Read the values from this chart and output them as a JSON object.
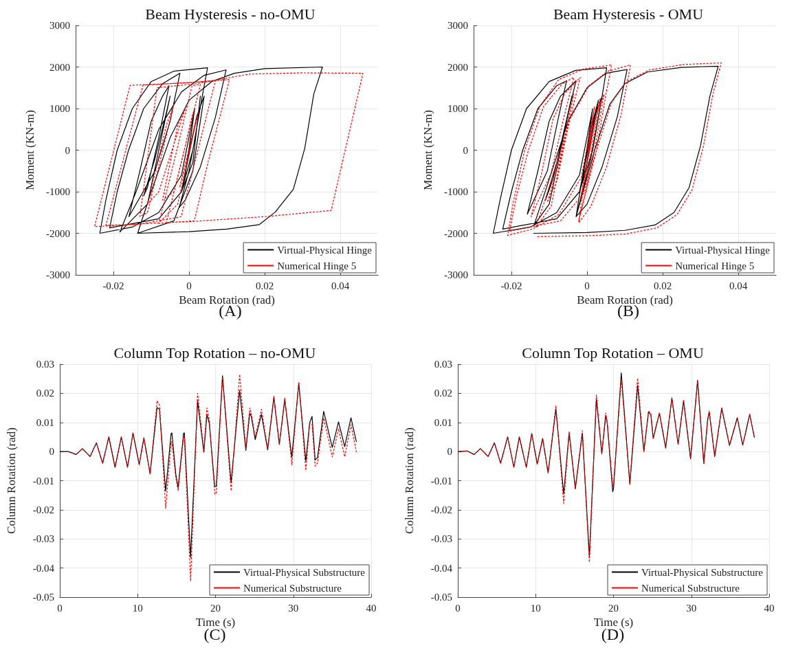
{
  "chart_data": [
    {
      "type": "line",
      "title": "Beam Hysteresis - no-OMU",
      "xlabel": "Beam Rotation (rad)",
      "ylabel": "Moment (KN-m)",
      "annotations": [
        "(A)"
      ],
      "xlim": [
        -0.03,
        0.05
      ],
      "xticks": [
        -0.02,
        0,
        0.02,
        0.04
      ],
      "ylim": [
        -3000,
        3000
      ],
      "yticks": [
        -3000,
        -2000,
        -1000,
        0,
        1000,
        2000,
        3000
      ],
      "grid": true,
      "legend": "bottom right",
      "series": [
        {
          "name": "Virtual-Physical Hinge",
          "color": "#000000",
          "line_style": "solid",
          "x": [
            0,
            0.0012,
            -0.001,
            0.0015,
            -0.002,
            -0.008,
            -0.015,
            -0.0236,
            -0.022,
            -0.019,
            -0.015,
            -0.01,
            -0.004,
            0.0049,
            0.0035,
            0.001,
            -0.002,
            -0.008,
            -0.021,
            -0.019,
            -0.016,
            -0.012,
            -0.007,
            -0.0024,
            -0.005,
            -0.009,
            -0.0159,
            -0.013,
            -0.01,
            -0.007,
            -0.0053,
            -0.008,
            -0.011,
            -0.012,
            -0.009,
            -0.006,
            -0.005,
            -0.008,
            -0.011,
            -0.0183,
            -0.014,
            -0.008,
            -0.002,
            0.004,
            0.0098,
            0.007,
            0.003,
            -0.001,
            -0.0026,
            0,
            0.002,
            0.003,
            0.001,
            -0.002,
            0.002,
            0.004,
            0.001,
            -0.004,
            -0.0136,
            -0.01,
            -0.005,
            0,
            0.006,
            0.012,
            0.02,
            0.0353,
            0.033,
            0.0306,
            0.0276,
            0.0228,
            0.0186,
            0.01,
            0,
            -0.0136
          ],
          "values": [
            0,
            800,
            -600,
            1000,
            -600,
            -1500,
            -1850,
            -2000,
            -1200,
            0,
            1000,
            1650,
            1900,
            1980,
            1300,
            0,
            -1000,
            -1650,
            -1870,
            -1000,
            0,
            1000,
            1600,
            1850,
            700,
            -500,
            -1600,
            -500,
            700,
            1300,
            1550,
            300,
            -900,
            -1100,
            -200,
            900,
            1300,
            0,
            -1300,
            -1970,
            -1000,
            500,
            1400,
            1800,
            1930,
            800,
            -400,
            -1200,
            -1380,
            -500,
            500,
            1300,
            -300,
            -1000,
            800,
            1300,
            -500,
            -1700,
            -2000,
            -1000,
            300,
            1200,
            1650,
            1850,
            1960,
            2000,
            1350,
            40,
            -940,
            -1490,
            -1790,
            -1900,
            -1960,
            -2000
          ]
        },
        {
          "name": "Numerical Hinge 5",
          "color": "#ff0000",
          "line_style": "dashed",
          "x": [
            0,
            0.0025,
            -0.0025,
            0.0018,
            -0.003,
            -0.008,
            -0.025,
            -0.0156,
            0,
            0.007,
            -0.0021,
            -0.013,
            -0.022,
            -0.0122,
            0.002,
            0.0107,
            0.005,
            0.0014,
            -0.008,
            -0.0035,
            0.0008,
            0.003,
            -0.004,
            -0.007,
            -0.003,
            -0.001,
            -0.008,
            -0.011,
            -0.006,
            -0.004,
            -0.011,
            -0.013,
            -0.0085,
            0.002,
            0.016,
            0.03,
            0.046,
            0.0376,
            0.02,
            0,
            -0.006,
            -0.0015,
            0.001
          ],
          "values": [
            0,
            900,
            -900,
            700,
            -1300,
            -1750,
            -1840,
            1560,
            1620,
            1680,
            -1600,
            -1780,
            -1810,
            1560,
            1640,
            1700,
            -300,
            -1700,
            -1760,
            -100,
            1550,
            1580,
            -1000,
            -1200,
            600,
            1000,
            -1000,
            -1300,
            600,
            1100,
            -1500,
            -1600,
            1500,
            1600,
            1830,
            1860,
            1850,
            -1450,
            -1600,
            -1720,
            -1740,
            -100,
            900
          ]
        }
      ]
    },
    {
      "type": "line",
      "title": "Beam Hysteresis - OMU",
      "xlabel": "Beam Rotation (rad)",
      "ylabel": "Moment (KN-m)",
      "annotations": [
        "(B)"
      ],
      "xlim": [
        -0.03,
        0.05
      ],
      "xticks": [
        -0.02,
        0,
        0.02,
        0.04
      ],
      "ylim": [
        -3000,
        3000
      ],
      "yticks": [
        -3000,
        -2000,
        -1000,
        0,
        1000,
        2000,
        3000
      ],
      "grid": true,
      "legend": "bottom right",
      "series": [
        {
          "name": "Virtual-Physical Hinge",
          "color": "#000000",
          "line_style": "solid",
          "x": [
            0,
            0.0012,
            -0.001,
            0.0015,
            -0.002,
            -0.008,
            -0.015,
            -0.0248,
            -0.023,
            -0.02,
            -0.016,
            -0.01,
            -0.003,
            0.0052,
            0.004,
            0.0015,
            -0.002,
            -0.008,
            -0.0223,
            -0.02,
            -0.017,
            -0.013,
            -0.008,
            -0.0054,
            -0.008,
            -0.0105,
            -0.0158,
            -0.013,
            -0.01,
            -0.007,
            -0.0029,
            -0.006,
            -0.009,
            -0.011,
            -0.008,
            -0.005,
            -0.004,
            -0.007,
            -0.01,
            -0.014,
            -0.01,
            -0.005,
            0,
            0.005,
            0.0106,
            0.008,
            0.004,
            0,
            -0.0029,
            -0.001,
            0.001,
            0.003,
            0,
            -0.002,
            0.002,
            0.004,
            0.001,
            -0.0029,
            0.002,
            0.006,
            0.01,
            0.016,
            0.025,
            0.0347,
            0.0325,
            0.03,
            0.027,
            0.023,
            0.018,
            0.01,
            0,
            -0.0142
          ],
          "values": [
            0,
            800,
            -600,
            1000,
            -600,
            -1500,
            -1850,
            -2000,
            -1200,
            0,
            1000,
            1650,
            1920,
            1980,
            1300,
            0,
            -1000,
            -1650,
            -1900,
            -1000,
            0,
            1000,
            1550,
            1670,
            600,
            -500,
            -1540,
            -500,
            700,
            1300,
            1670,
            500,
            -700,
            -1200,
            -300,
            900,
            1300,
            0,
            -1300,
            -1800,
            -700,
            700,
            1500,
            1850,
            1940,
            800,
            -400,
            -1300,
            -1600,
            -500,
            500,
            1200,
            -300,
            -1000,
            800,
            1300,
            -200,
            -1600,
            0,
            1100,
            1600,
            1880,
            1990,
            2020,
            1300,
            100,
            -900,
            -1500,
            -1800,
            -1930,
            -1980,
            -2000
          ]
        },
        {
          "name": "Numerical Hinge 5",
          "color": "#ff0000",
          "line_style": "dashed",
          "x": [
            0,
            0.0016,
            -0.0006,
            0.002,
            -0.0015,
            -0.0075,
            -0.0145,
            -0.021,
            -0.0195,
            -0.0165,
            -0.0125,
            -0.0075,
            -0.001,
            0.0065,
            0.005,
            0.0025,
            -0.001,
            -0.007,
            -0.0205,
            -0.0185,
            -0.0155,
            -0.0115,
            -0.0065,
            -0.0035,
            -0.0065,
            -0.0095,
            -0.0148,
            -0.012,
            -0.009,
            -0.006,
            -0.0018,
            -0.005,
            -0.008,
            -0.0105,
            -0.0075,
            -0.0045,
            -0.0035,
            -0.0065,
            -0.0095,
            -0.0135,
            -0.0095,
            -0.0045,
            0.0005,
            0.0055,
            0.0115,
            0.009,
            0.005,
            0.001,
            -0.0022,
            -0.0005,
            0.0015,
            0.0035,
            0.0005,
            -0.0015,
            0.0025,
            0.0045,
            0.0015,
            -0.0022,
            0.0025,
            0.0065,
            0.0105,
            0.0165,
            0.0255,
            0.0355,
            0.0333,
            0.0308,
            0.0278,
            0.0238,
            0.0185,
            0.01,
            0,
            -0.0135
          ],
          "values": [
            0,
            850,
            -650,
            1050,
            -650,
            -1550,
            -1900,
            -2050,
            -1250,
            0,
            1050,
            1700,
            1950,
            2050,
            1350,
            0,
            -1050,
            -1700,
            -1950,
            -1050,
            0,
            1050,
            1600,
            1750,
            650,
            -550,
            -1600,
            -550,
            750,
            1350,
            1750,
            550,
            -750,
            -1250,
            -350,
            950,
            1350,
            0,
            -1350,
            -1850,
            -750,
            750,
            1550,
            1900,
            2050,
            850,
            -450,
            -1350,
            -1750,
            -550,
            550,
            1250,
            -350,
            -1050,
            850,
            1350,
            -250,
            -1700,
            0,
            1150,
            1650,
            1930,
            2060,
            2100,
            1350,
            100,
            -950,
            -1550,
            -1870,
            -2020,
            -2060,
            -2080
          ]
        }
      ]
    },
    {
      "type": "line",
      "title": "Column Top Rotation – no-OMU",
      "xlabel": "Time (s)",
      "ylabel": "Column Rotation (rad)",
      "annotations": [
        "(C)"
      ],
      "xlim": [
        0,
        40
      ],
      "xticks": [
        0,
        10,
        20,
        30,
        40
      ],
      "ylim": [
        -0.05,
        0.03
      ],
      "yticks": [
        -0.05,
        -0.04,
        -0.03,
        -0.02,
        -0.01,
        0,
        0.01,
        0.02,
        0.03
      ],
      "grid": true,
      "legend": "bottom right",
      "x": [
        0,
        1.1,
        2.1,
        2.9,
        3.9,
        4.7,
        5.5,
        6.3,
        7.1,
        7.9,
        8.7,
        9.4,
        10.2,
        10.8,
        11.6,
        12.5,
        12.8,
        13.6,
        14.3,
        14.4,
        14.9,
        15.2,
        15.9,
        16,
        16.8,
        17.7,
        18.5,
        18.9,
        19.2,
        19.9,
        20.1,
        20.9,
        22,
        23.1,
        23.9,
        24.4,
        24.6,
        25.1,
        25.9,
        26.7,
        27.5,
        28.2,
        28.9,
        29.8,
        30.7,
        31.6,
        32.1,
        32.4,
        32.8,
        33.1,
        33.9,
        35,
        35.8,
        36.6,
        37.4,
        38.1
      ],
      "series": [
        {
          "name": "Virtual-Physical Substructure",
          "color": "#000000",
          "line_style": "solid",
          "values": [
            0,
            0,
            -0.001,
            0.001,
            -0.0017,
            0.003,
            -0.004,
            0.005,
            -0.0054,
            0.005,
            -0.0054,
            0.0064,
            -0.0045,
            0.0047,
            -0.0076,
            0.0151,
            0.0146,
            -0.0136,
            0.0062,
            0.0064,
            -0.0078,
            -0.0124,
            0.0062,
            0.0064,
            -0.0364,
            0.0174,
            -0.0002,
            0.0128,
            0.0097,
            -0.012,
            -0.012,
            0.026,
            -0.0107,
            0.021,
            0.0004,
            0.0132,
            0.0121,
            0.0041,
            0.0128,
            0.0006,
            0.0186,
            0.0025,
            0.0178,
            -0.0019,
            0.0234,
            -0.0033,
            0.0099,
            0.0121,
            -0.0029,
            -0.0021,
            0.0138,
            0.0014,
            0.0102,
            0.0017,
            0.0116,
            0.0033
          ]
        },
        {
          "name": "Numerical Substructure",
          "color": "#ff0000",
          "line_style": "dashed",
          "values": [
            null,
            0,
            -0.001,
            0.001,
            -0.0017,
            0.003,
            -0.004,
            0.005,
            -0.0054,
            0.005,
            -0.0054,
            0.0064,
            -0.0045,
            0.0047,
            -0.0076,
            0.0175,
            0.016,
            -0.0195,
            0.0035,
            0.003,
            -0.009,
            -0.0135,
            0.005,
            0.005,
            -0.0445,
            0.02,
            0.0005,
            0.015,
            0.011,
            -0.0145,
            -0.0145,
            0.026,
            -0.0135,
            0.0265,
            0.001,
            0.015,
            0.013,
            0.005,
            0.0145,
            0.001,
            0.019,
            0.0025,
            0.0185,
            -0.0045,
            0.024,
            -0.0065,
            0.0095,
            0.0095,
            -0.005,
            -0.004,
            0.0115,
            -0.0018,
            0.0078,
            -0.0018,
            0.0092,
            -0.0002
          ]
        }
      ]
    },
    {
      "type": "line",
      "title": "Column Top Rotation – OMU",
      "xlabel": "Time (s)",
      "ylabel": "Column Rotation (rad)",
      "annotations": [
        "(D)"
      ],
      "xlim": [
        0,
        40
      ],
      "xticks": [
        0,
        10,
        20,
        30,
        40
      ],
      "ylim": [
        -0.05,
        0.03
      ],
      "yticks": [
        -0.05,
        -0.04,
        -0.03,
        -0.02,
        -0.01,
        0,
        0.01,
        0.02,
        0.03
      ],
      "grid": true,
      "legend": "bottom right",
      "x": [
        0,
        1.2,
        2.1,
        2.9,
        3.9,
        4.7,
        5.5,
        6.4,
        7.2,
        7.9,
        8.8,
        9.5,
        10.2,
        10.9,
        11.6,
        12.6,
        13.6,
        14.3,
        15.1,
        16,
        16.9,
        17.8,
        18.5,
        19,
        19.2,
        19.9,
        20,
        21,
        22.1,
        23.1,
        23.9,
        24.5,
        24.8,
        25.1,
        25.9,
        26.7,
        27.5,
        28.3,
        29,
        29.9,
        30.8,
        31.6,
        32.1,
        32.3,
        33,
        33.9,
        34.9,
        35.9,
        36.6,
        37.5,
        38.1
      ],
      "series": [
        {
          "name": "Virtual-Physical Substructure",
          "color": "#000000",
          "line_style": "solid",
          "values": [
            0,
            0.0002,
            -0.001,
            0.001,
            -0.0017,
            0.003,
            -0.004,
            0.005,
            -0.0054,
            0.005,
            -0.0054,
            0.0062,
            -0.0043,
            0.0045,
            -0.0073,
            0.0146,
            -0.0146,
            0.0064,
            -0.0128,
            0.0064,
            -0.036,
            0.0182,
            -0.0008,
            0.0124,
            0.0097,
            -0.0138,
            -0.0128,
            0.027,
            -0.0112,
            0.0227,
            0,
            0.0136,
            0.0126,
            0.0045,
            0.0132,
            0.0012,
            0.0184,
            0.0025,
            0.0174,
            -0.0025,
            0.0245,
            -0.0041,
            0.0112,
            0.0136,
            -0.0017,
            0.0149,
            0.0021,
            0.0116,
            0.0022,
            0.0128,
            0.0048
          ]
        },
        {
          "name": "Numerical Substructure",
          "color": "#ff0000",
          "line_style": "dashed",
          "values": [
            0,
            0.0002,
            -0.001,
            0.001,
            -0.0017,
            0.003,
            -0.004,
            0.005,
            -0.0054,
            0.005,
            -0.0054,
            0.0062,
            -0.0043,
            0.0045,
            -0.0073,
            0.0158,
            -0.0178,
            0.0068,
            -0.0125,
            0.0072,
            -0.038,
            0.0195,
            -0.0005,
            0.0132,
            0.01,
            -0.0118,
            -0.0115,
            0.025,
            -0.0108,
            0.0252,
            0.0002,
            0.014,
            0.013,
            0.0046,
            0.0134,
            0.0014,
            0.0183,
            0.0027,
            0.0178,
            -0.002,
            0.024,
            -0.0043,
            0.0108,
            0.014,
            -0.0015,
            0.0151,
            0.0022,
            0.0116,
            0.0023,
            0.0128,
            0.0049
          ]
        }
      ]
    }
  ]
}
